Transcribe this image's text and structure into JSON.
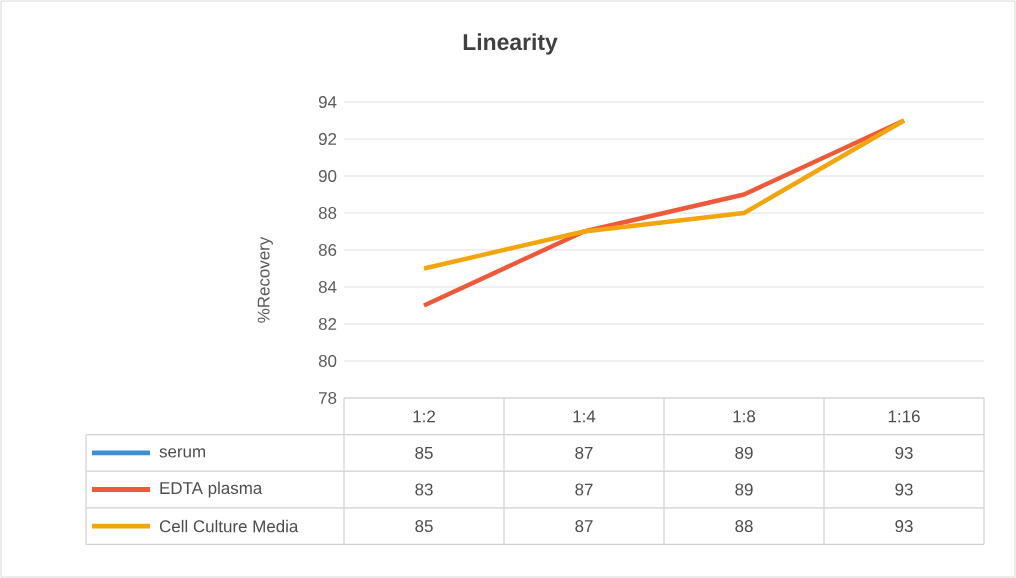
{
  "chart_data": {
    "type": "line",
    "title": "Linearity",
    "ylabel": "%Recovery",
    "categories": [
      "1:2",
      "1:4",
      "1:8",
      "1:16"
    ],
    "series": [
      {
        "name": "serum",
        "color": "#3a8fd6",
        "values": [
          null,
          null,
          null,
          null
        ],
        "value_labels": [
          "85",
          "87",
          "89",
          "93"
        ]
      },
      {
        "name": "EDTA plasma",
        "color": "#ec5a3a",
        "values": [
          83,
          87,
          89,
          93
        ],
        "value_labels": [
          "83",
          "87",
          "89",
          "93"
        ]
      },
      {
        "name": "Cell Culture Media",
        "color": "#f2a50c",
        "values": [
          85,
          87,
          88,
          93
        ],
        "value_labels": [
          "85",
          "87",
          "88",
          "93"
        ]
      }
    ],
    "ylim": [
      78,
      94
    ],
    "yticks": [
      78,
      80,
      82,
      84,
      86,
      88,
      90,
      92,
      94
    ],
    "grid": "y",
    "legend": "bottom left"
  }
}
